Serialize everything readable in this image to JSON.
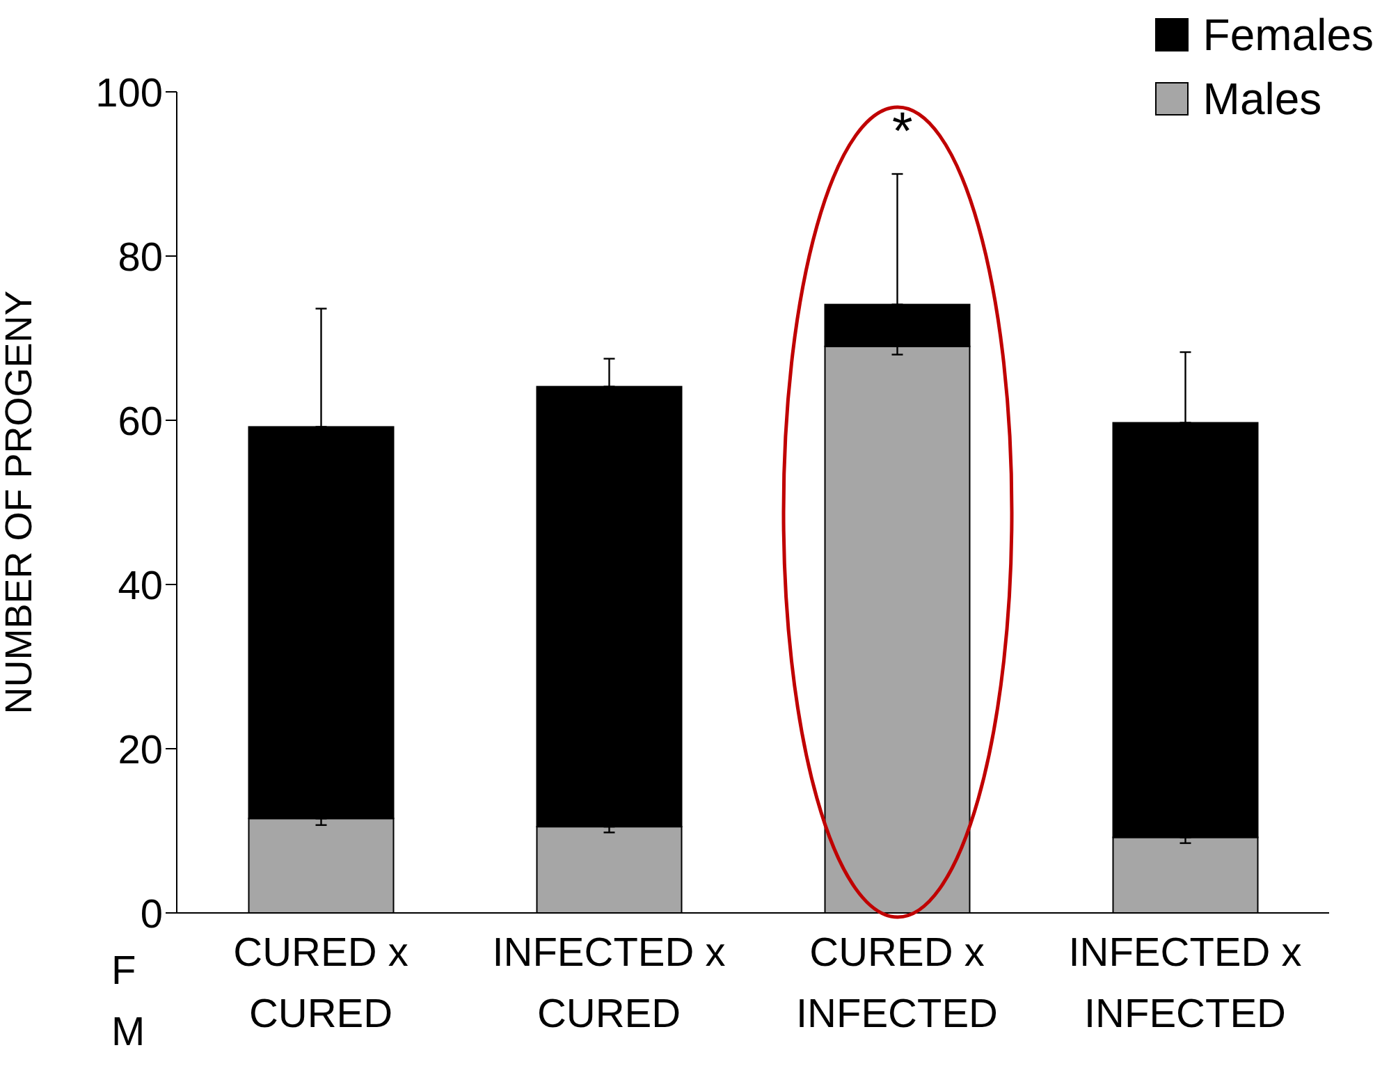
{
  "chart_data": {
    "type": "bar",
    "stacked": true,
    "ylabel": "NUMBER OF PROGENY",
    "categories": [
      "CURED x CURED",
      "INFECTED x CURED",
      "CURED x INFECTED",
      "INFECTED x INFECTED"
    ],
    "series": [
      {
        "name": "Males",
        "color": "#a6a6a6",
        "values": [
          11.5,
          10.5,
          69.0,
          9.2
        ],
        "errors": [
          [
            10.7,
            11.5
          ],
          [
            9.8,
            10.5
          ],
          [
            68.0,
            69.0
          ],
          [
            8.5,
            9.2
          ]
        ]
      },
      {
        "name": "Females",
        "color": "#000000",
        "values": [
          47.7,
          53.6,
          5.1,
          50.5
        ],
        "errors": [
          [
            59.2,
            73.6
          ],
          [
            64.1,
            67.5
          ],
          [
            74.1,
            90.0
          ],
          [
            59.7,
            68.3
          ]
        ]
      }
    ],
    "ylim": [
      0,
      100
    ],
    "yticks": [
      0,
      20,
      40,
      60,
      80,
      100
    ],
    "grid": false,
    "legend": "top right",
    "annotations": [
      "F",
      "M",
      "*"
    ]
  }
}
